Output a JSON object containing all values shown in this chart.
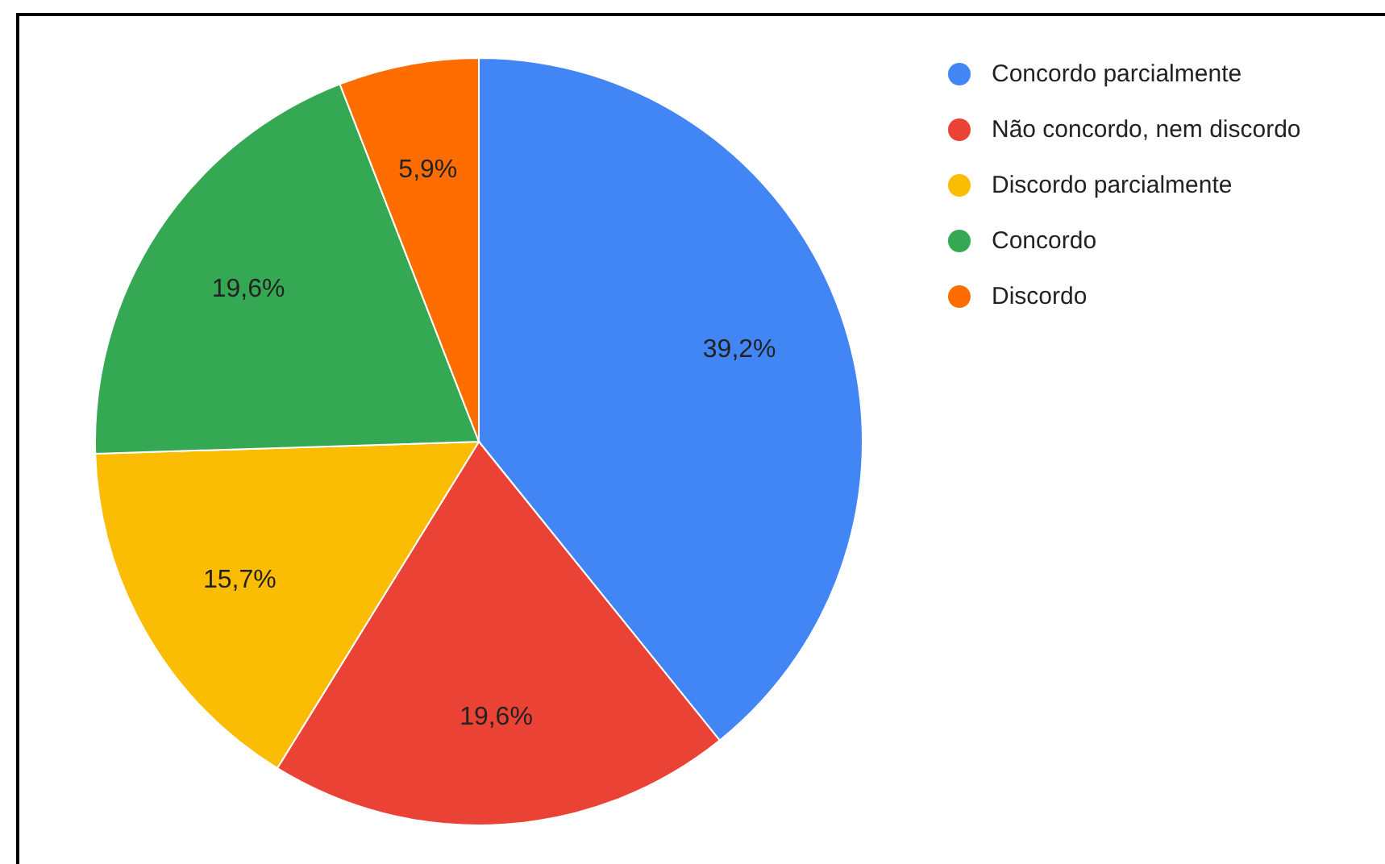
{
  "chart_data": {
    "type": "pie",
    "categories": [
      "Concordo parcialmente",
      "Não concordo, nem discordo",
      "Discordo parcialmente",
      "Concordo",
      "Discordo"
    ],
    "values": [
      39.2,
      19.6,
      15.7,
      19.6,
      5.9
    ],
    "colors": [
      "#4285f4",
      "#ea4335",
      "#fbbc04",
      "#34a853",
      "#ff6d01"
    ],
    "value_labels": [
      "39,2%",
      "19,6%",
      "15,7%",
      "19,6%",
      "5,9%"
    ],
    "legend": "top right"
  }
}
